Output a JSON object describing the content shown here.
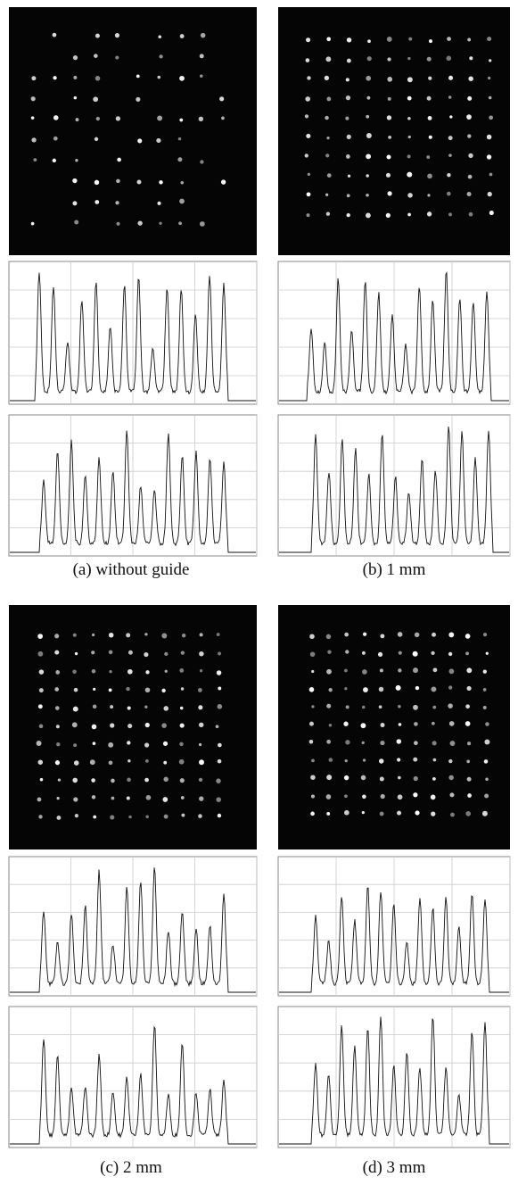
{
  "panels": [
    {
      "caption": "(a) without guide"
    },
    {
      "caption": "(b) 1 mm"
    },
    {
      "caption": "(c) 2 mm"
    },
    {
      "caption": "(d) 3 mm"
    }
  ]
}
